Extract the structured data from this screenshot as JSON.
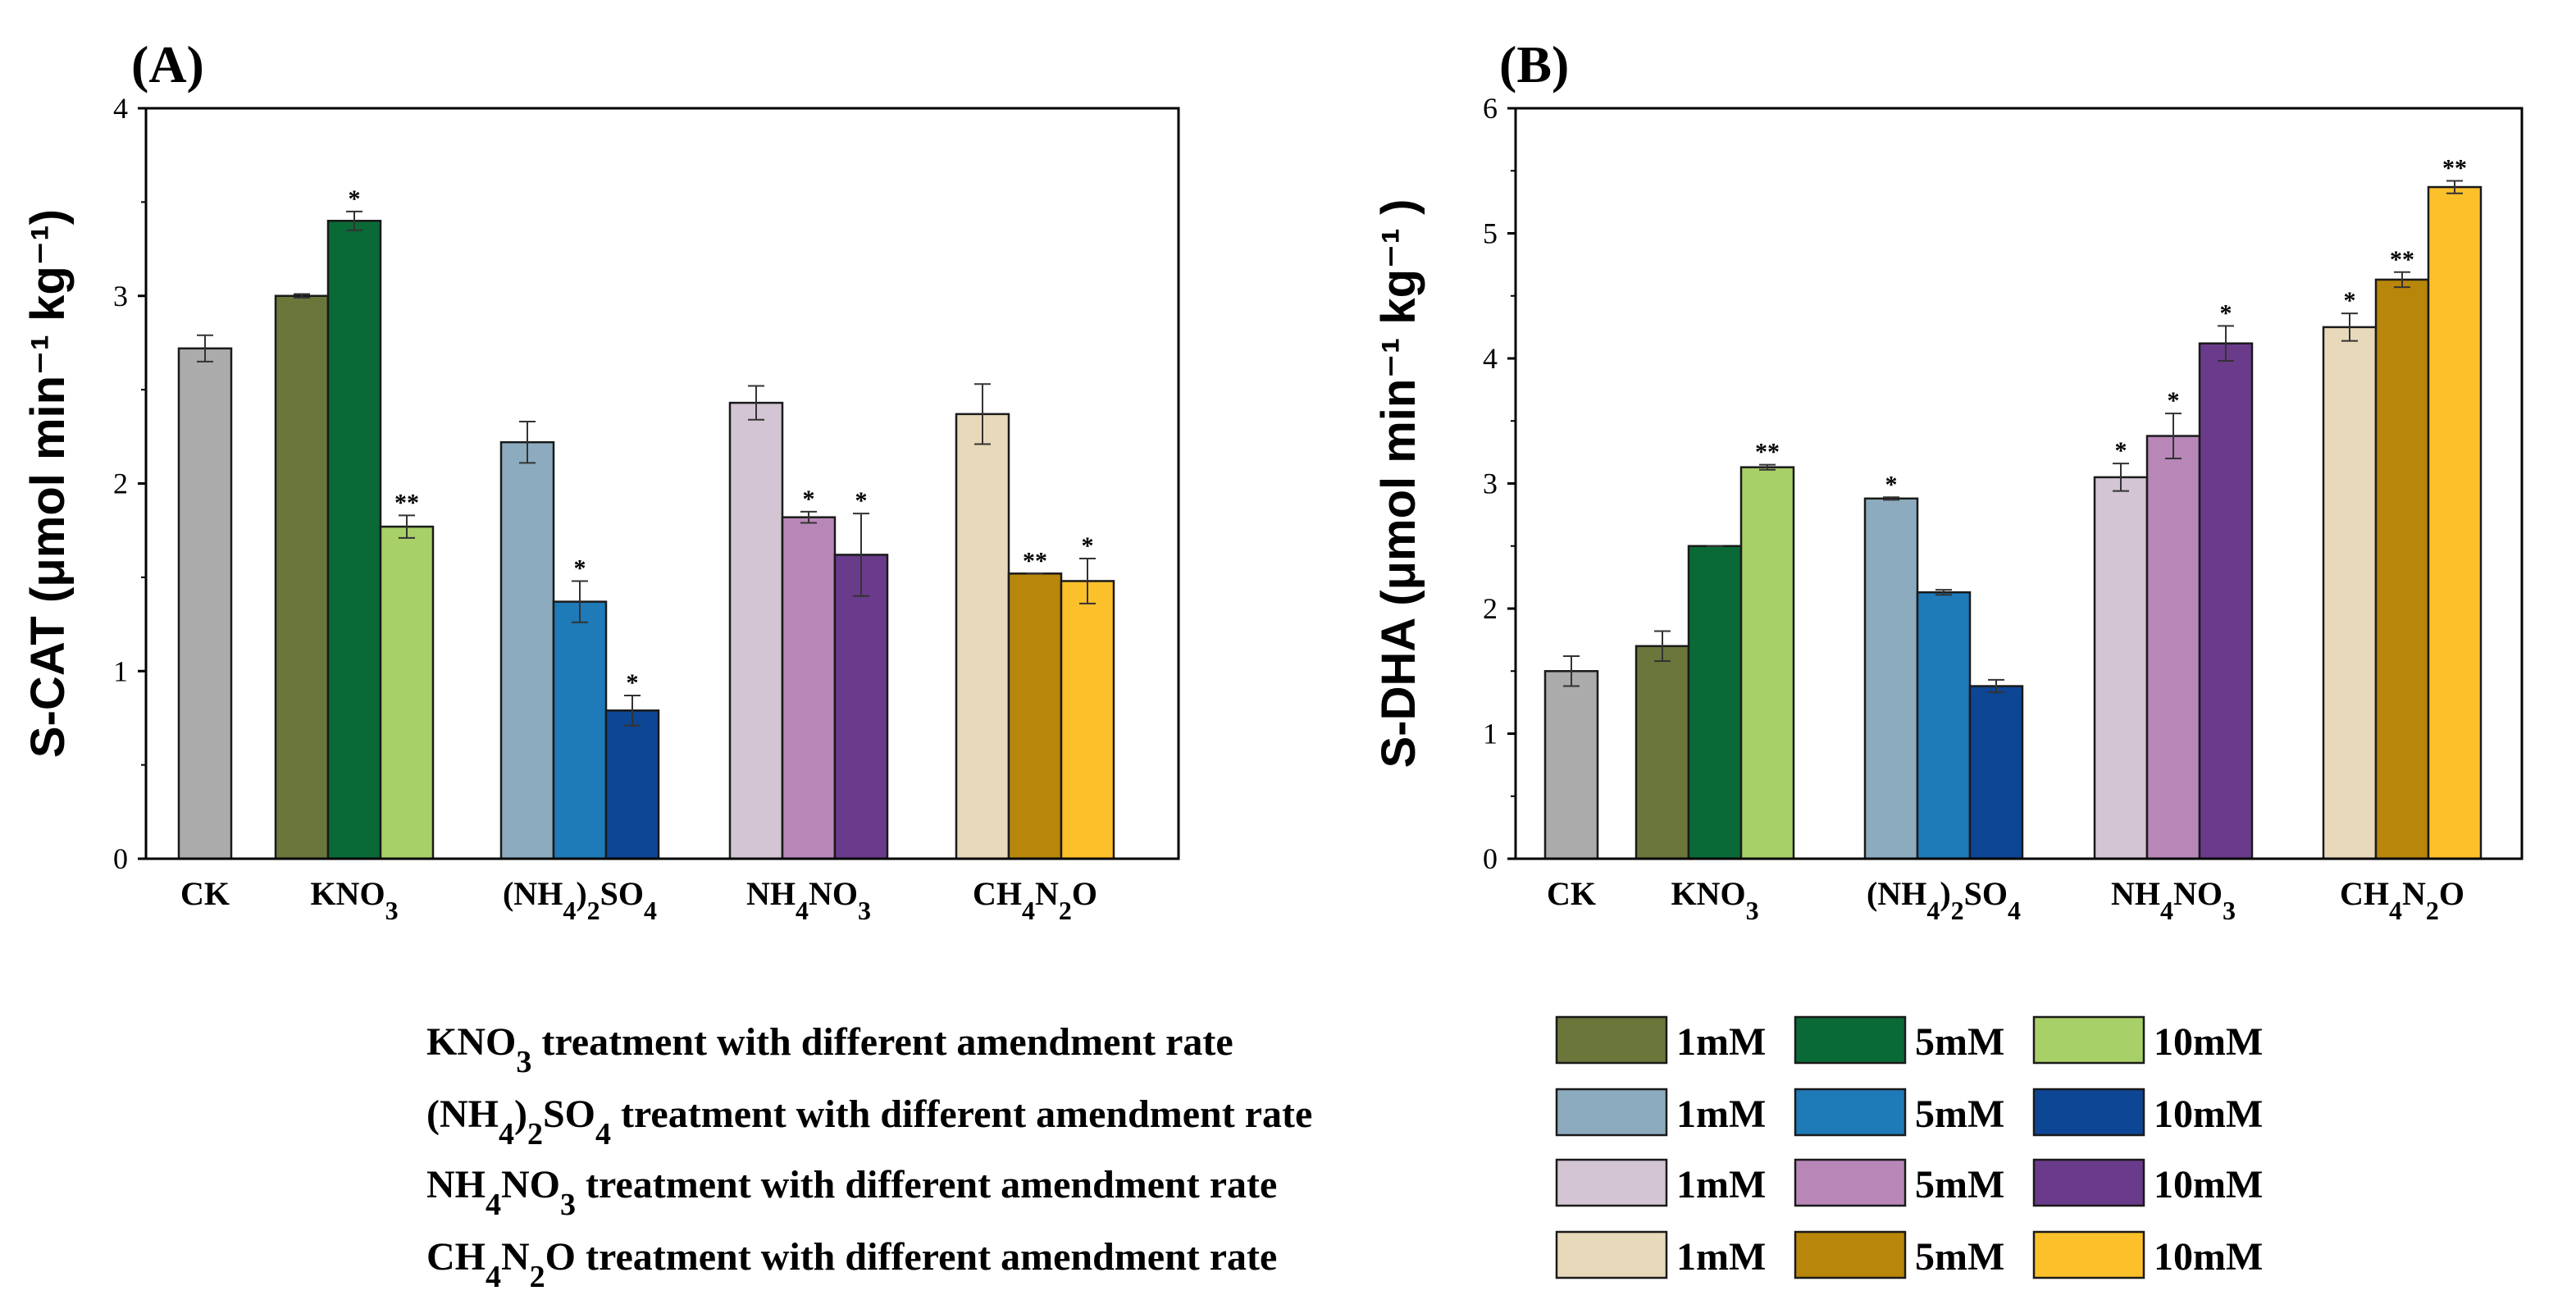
{
  "chart_data": [
    {
      "type": "bar",
      "panel": "(A)",
      "ylabel": "S-CAT (μmol min⁻¹ kg⁻¹)",
      "ylim": [
        0,
        4
      ],
      "yticks": [
        "0",
        "1",
        "2",
        "3",
        "4"
      ],
      "categories": [
        {
          "main": "CK",
          "sub": []
        },
        {
          "main": "KNO3",
          "parts": [
            [
              "KNO",
              false
            ],
            [
              "3",
              true
            ]
          ]
        },
        {
          "main": "(NH4)2SO4",
          "parts": [
            [
              "(NH",
              false
            ],
            [
              "4",
              true
            ],
            [
              ")",
              false
            ],
            [
              "2",
              true
            ],
            [
              "SO",
              false
            ],
            [
              "4",
              true
            ]
          ]
        },
        {
          "main": "NH4NO3",
          "parts": [
            [
              "NH",
              false
            ],
            [
              "4",
              true
            ],
            [
              "NO",
              false
            ],
            [
              "3",
              true
            ]
          ]
        },
        {
          "main": "CH4N2O",
          "parts": [
            [
              "CH",
              false
            ],
            [
              "4",
              true
            ],
            [
              "N",
              false
            ],
            [
              "2",
              true
            ],
            [
              "O",
              false
            ]
          ]
        }
      ],
      "groups": [
        [
          {
            "value": 2.72,
            "err": 0.07,
            "sig": "",
            "color": "#ababab"
          }
        ],
        [
          {
            "value": 3.0,
            "err": 0.01,
            "sig": "",
            "color": "#6b763b"
          },
          {
            "value": 3.4,
            "err": 0.05,
            "sig": "*",
            "color": "#0a6a37"
          },
          {
            "value": 1.77,
            "err": 0.06,
            "sig": "**",
            "color": "#a8d068"
          }
        ],
        [
          {
            "value": 2.22,
            "err": 0.11,
            "sig": "",
            "color": "#8cabbf"
          },
          {
            "value": 1.37,
            "err": 0.11,
            "sig": "*",
            "color": "#1f7ab8"
          },
          {
            "value": 0.79,
            "err": 0.08,
            "sig": "*",
            "color": "#0d4694"
          }
        ],
        [
          {
            "value": 2.43,
            "err": 0.09,
            "sig": "",
            "color": "#d3c5d3"
          },
          {
            "value": 1.82,
            "err": 0.03,
            "sig": "*",
            "color": "#b887b8"
          },
          {
            "value": 1.62,
            "err": 0.22,
            "sig": "*",
            "color": "#6a3b8a"
          }
        ],
        [
          {
            "value": 2.37,
            "err": 0.16,
            "sig": "",
            "color": "#e8d9bb"
          },
          {
            "value": 1.52,
            "err": 0.0,
            "sig": "**",
            "color": "#b7860b"
          },
          {
            "value": 1.48,
            "err": 0.12,
            "sig": "*",
            "color": "#fcc02a"
          }
        ]
      ]
    },
    {
      "type": "bar",
      "panel": "(B)",
      "ylabel": "S-DHA (μmol min⁻¹ kg⁻¹ )",
      "ylim": [
        0,
        6
      ],
      "yticks": [
        "0",
        "1",
        "2",
        "3",
        "4",
        "5",
        "6"
      ],
      "categories": [
        {
          "main": "CK",
          "sub": []
        },
        {
          "main": "KNO3",
          "parts": [
            [
              "KNO",
              false
            ],
            [
              "3",
              true
            ]
          ]
        },
        {
          "main": "(NH4)2SO4",
          "parts": [
            [
              "(NH",
              false
            ],
            [
              "4",
              true
            ],
            [
              ")",
              false
            ],
            [
              "2",
              true
            ],
            [
              "SO",
              false
            ],
            [
              "4",
              true
            ]
          ]
        },
        {
          "main": "NH4NO3",
          "parts": [
            [
              "NH",
              false
            ],
            [
              "4",
              true
            ],
            [
              "NO",
              false
            ],
            [
              "3",
              true
            ]
          ]
        },
        {
          "main": "CH4N2O",
          "parts": [
            [
              "CH",
              false
            ],
            [
              "4",
              true
            ],
            [
              "N",
              false
            ],
            [
              "2",
              true
            ],
            [
              "O",
              false
            ]
          ]
        }
      ],
      "groups": [
        [
          {
            "value": 1.5,
            "err": 0.12,
            "sig": "",
            "color": "#ababab"
          }
        ],
        [
          {
            "value": 1.7,
            "err": 0.12,
            "sig": "",
            "color": "#6b763b"
          },
          {
            "value": 2.5,
            "err": 0.0,
            "sig": "",
            "color": "#0a6a37"
          },
          {
            "value": 3.13,
            "err": 0.02,
            "sig": "**",
            "color": "#a8d068"
          }
        ],
        [
          {
            "value": 2.88,
            "err": 0.01,
            "sig": "*",
            "color": "#8cabbf"
          },
          {
            "value": 2.13,
            "err": 0.02,
            "sig": "",
            "color": "#1f7ab8"
          },
          {
            "value": 1.38,
            "err": 0.05,
            "sig": "",
            "color": "#0d4694"
          }
        ],
        [
          {
            "value": 3.05,
            "err": 0.11,
            "sig": "*",
            "color": "#d3c5d3"
          },
          {
            "value": 3.38,
            "err": 0.18,
            "sig": "*",
            "color": "#b887b8"
          },
          {
            "value": 4.12,
            "err": 0.14,
            "sig": "*",
            "color": "#6a3b8a"
          }
        ],
        [
          {
            "value": 4.25,
            "err": 0.11,
            "sig": "*",
            "color": "#e8d9bb"
          },
          {
            "value": 4.63,
            "err": 0.06,
            "sig": "**",
            "color": "#b7860b"
          },
          {
            "value": 5.37,
            "err": 0.05,
            "sig": "**",
            "color": "#fcc02a"
          }
        ]
      ]
    }
  ],
  "legend": {
    "rows": [
      {
        "label": "KNO3 treatment with different amendment rate",
        "parts": [
          [
            "KNO",
            false
          ],
          [
            "3",
            true
          ],
          [
            " treatment with different amendment rate",
            false
          ]
        ],
        "colors": [
          "#6b763b",
          "#0a6a37",
          "#a8d068"
        ]
      },
      {
        "label": "(NH4)2SO4 treatment with different amendment rate",
        "parts": [
          [
            "(NH",
            false
          ],
          [
            "4",
            true
          ],
          [
            ")",
            false
          ],
          [
            "2",
            true
          ],
          [
            "SO",
            false
          ],
          [
            "4",
            true
          ],
          [
            " treatment with different amendment rate",
            false
          ]
        ],
        "colors": [
          "#8cabbf",
          "#1f7ab8",
          "#0d4694"
        ]
      },
      {
        "label": "NH4NO3 treatment with different amendment rate",
        "parts": [
          [
            "NH",
            false
          ],
          [
            "4",
            true
          ],
          [
            "NO",
            false
          ],
          [
            "3",
            true
          ],
          [
            " treatment with different amendment rate",
            false
          ]
        ],
        "colors": [
          "#d3c5d3",
          "#b887b8",
          "#6a3b8a"
        ]
      },
      {
        "label": "CH4N2O treatment with different amendment rate",
        "parts": [
          [
            "CH",
            false
          ],
          [
            "4",
            true
          ],
          [
            "N",
            false
          ],
          [
            "2",
            true
          ],
          [
            "O",
            false
          ],
          [
            " treatment with different amendment rate",
            false
          ]
        ],
        "colors": [
          "#e8d9bb",
          "#b7860b",
          "#fcc02a"
        ]
      }
    ],
    "rates": [
      "1mM",
      "5mM",
      "10mM"
    ]
  }
}
